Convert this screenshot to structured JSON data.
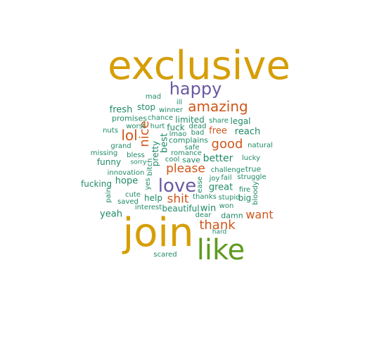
{
  "colors": {
    "background": "#ffffff",
    "gold": "#d69e07",
    "green": "#5e9b1f",
    "purple": "#6a59a3",
    "orange": "#d0561a",
    "teal": "#208a68"
  },
  "words": [
    {
      "text": "exclusive",
      "color": "gold"
    },
    {
      "text": "join",
      "color": "gold"
    },
    {
      "text": "like",
      "color": "green"
    },
    {
      "text": "happy",
      "color": "purple"
    },
    {
      "text": "love",
      "color": "purple"
    },
    {
      "text": "amazing",
      "color": "orange"
    },
    {
      "text": "lol",
      "color": "orange"
    },
    {
      "text": "nice",
      "color": "orange"
    },
    {
      "text": "good",
      "color": "orange"
    },
    {
      "text": "please",
      "color": "orange"
    },
    {
      "text": "shit",
      "color": "orange"
    },
    {
      "text": "thank",
      "color": "orange"
    },
    {
      "text": "want",
      "color": "orange"
    },
    {
      "text": "free",
      "color": "orange"
    },
    {
      "text": "fresh",
      "color": "teal"
    },
    {
      "text": "stop",
      "color": "teal"
    },
    {
      "text": "mad",
      "color": "teal"
    },
    {
      "text": "winner",
      "color": "teal"
    },
    {
      "text": "ill",
      "color": "teal"
    },
    {
      "text": "promises",
      "color": "teal"
    },
    {
      "text": "chance",
      "color": "teal"
    },
    {
      "text": "limited",
      "color": "teal"
    },
    {
      "text": "legal",
      "color": "teal"
    },
    {
      "text": "share",
      "color": "teal"
    },
    {
      "text": "worst",
      "color": "teal"
    },
    {
      "text": "hurt",
      "color": "teal"
    },
    {
      "text": "fuck",
      "color": "teal"
    },
    {
      "text": "dead",
      "color": "teal"
    },
    {
      "text": "nuts",
      "color": "teal"
    },
    {
      "text": "lmao",
      "color": "teal"
    },
    {
      "text": "bad",
      "color": "teal"
    },
    {
      "text": "reach",
      "color": "teal"
    },
    {
      "text": "complains",
      "color": "teal"
    },
    {
      "text": "grand",
      "color": "teal"
    },
    {
      "text": "best",
      "color": "teal"
    },
    {
      "text": "natural",
      "color": "teal"
    },
    {
      "text": "safe",
      "color": "teal"
    },
    {
      "text": "pretty",
      "color": "teal"
    },
    {
      "text": "missing",
      "color": "teal"
    },
    {
      "text": "romance",
      "color": "teal"
    },
    {
      "text": "bless",
      "color": "teal"
    },
    {
      "text": "funny",
      "color": "teal"
    },
    {
      "text": "sorry",
      "color": "teal"
    },
    {
      "text": "cool",
      "color": "teal"
    },
    {
      "text": "save",
      "color": "teal"
    },
    {
      "text": "better",
      "color": "teal"
    },
    {
      "text": "lucky",
      "color": "teal"
    },
    {
      "text": "bitch",
      "color": "teal"
    },
    {
      "text": "challenge",
      "color": "teal"
    },
    {
      "text": "true",
      "color": "teal"
    },
    {
      "text": "innovation",
      "color": "teal"
    },
    {
      "text": "hope",
      "color": "teal"
    },
    {
      "text": "joy",
      "color": "teal"
    },
    {
      "text": "fail",
      "color": "teal"
    },
    {
      "text": "struggle",
      "color": "teal"
    },
    {
      "text": "fucking",
      "color": "teal"
    },
    {
      "text": "yes",
      "color": "teal"
    },
    {
      "text": "ease",
      "color": "teal"
    },
    {
      "text": "great",
      "color": "teal"
    },
    {
      "text": "fire",
      "color": "teal"
    },
    {
      "text": "bloody",
      "color": "teal"
    },
    {
      "text": "pain",
      "color": "teal"
    },
    {
      "text": "cute",
      "color": "teal"
    },
    {
      "text": "help",
      "color": "teal"
    },
    {
      "text": "thanks",
      "color": "teal"
    },
    {
      "text": "stupid",
      "color": "teal"
    },
    {
      "text": "big",
      "color": "teal"
    },
    {
      "text": "saved",
      "color": "teal"
    },
    {
      "text": "interest",
      "color": "teal"
    },
    {
      "text": "beautiful",
      "color": "teal"
    },
    {
      "text": "win",
      "color": "teal"
    },
    {
      "text": "won",
      "color": "teal"
    },
    {
      "text": "yeah",
      "color": "teal"
    },
    {
      "text": "dear",
      "color": "teal"
    },
    {
      "text": "damn",
      "color": "teal"
    },
    {
      "text": "hard",
      "color": "teal"
    },
    {
      "text": "scared",
      "color": "teal"
    }
  ]
}
